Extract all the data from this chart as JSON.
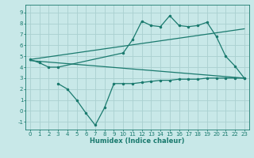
{
  "line1_x": [
    0,
    1,
    2,
    3,
    10,
    11,
    12,
    13,
    14,
    15,
    16,
    17,
    18,
    19,
    20,
    21,
    22,
    23
  ],
  "line1_y": [
    4.7,
    4.4,
    4.0,
    4.0,
    5.3,
    6.5,
    8.2,
    7.8,
    7.7,
    8.7,
    7.8,
    7.7,
    7.8,
    8.1,
    6.8,
    5.0,
    4.1,
    3.0
  ],
  "line2_x": [
    0,
    23
  ],
  "line2_y": [
    4.7,
    7.5
  ],
  "line3_x": [
    3,
    4,
    5,
    6,
    7,
    8,
    9,
    10,
    11,
    12,
    13,
    14,
    15,
    16,
    17,
    18,
    19,
    20,
    21,
    22,
    23
  ],
  "line3_y": [
    2.5,
    2.0,
    1.0,
    -0.2,
    -1.3,
    0.3,
    2.5,
    2.5,
    2.5,
    2.6,
    2.7,
    2.8,
    2.8,
    2.9,
    2.9,
    2.9,
    3.0,
    3.0,
    3.0,
    3.0,
    3.0
  ],
  "line4_x": [
    0,
    23
  ],
  "line4_y": [
    4.6,
    3.0
  ],
  "color": "#1a7a6e",
  "bg_color": "#c8e8e8",
  "grid_color": "#aad0d0",
  "xlabel": "Humidex (Indice chaleur)",
  "xlim": [
    -0.5,
    23.5
  ],
  "ylim": [
    -1.7,
    9.7
  ],
  "yticks": [
    -1,
    0,
    1,
    2,
    3,
    4,
    5,
    6,
    7,
    8,
    9
  ],
  "xticks": [
    0,
    1,
    2,
    3,
    4,
    5,
    6,
    7,
    8,
    9,
    10,
    11,
    12,
    13,
    14,
    15,
    16,
    17,
    18,
    19,
    20,
    21,
    22,
    23
  ]
}
